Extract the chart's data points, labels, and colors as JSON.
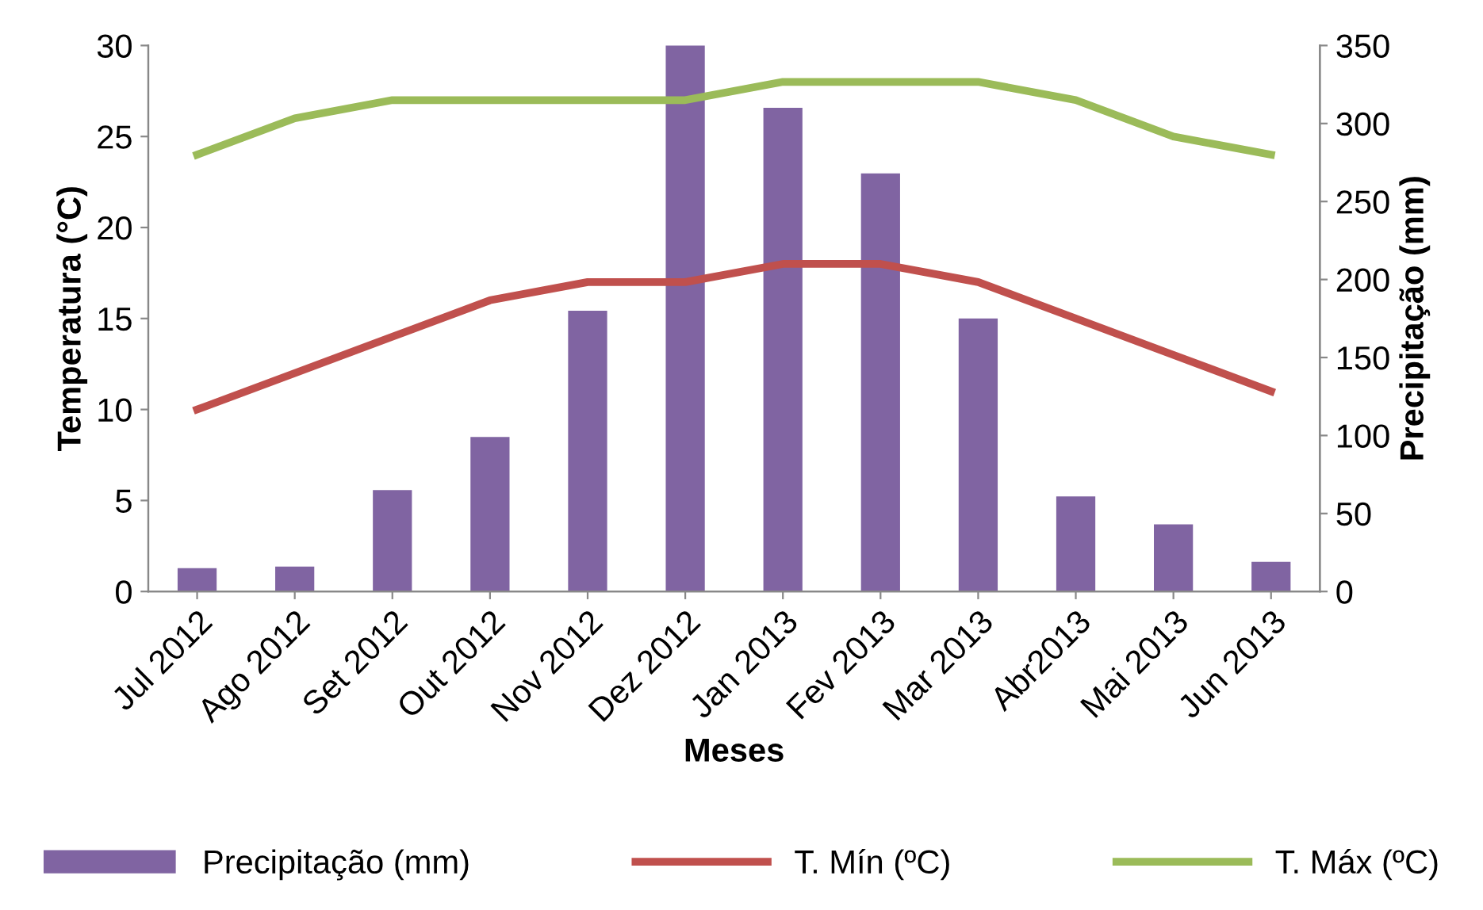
{
  "chart_data": {
    "type": "bar",
    "xlabel": "Meses",
    "ylabel": "Temperatura (°C)",
    "y2label": "Precipitação (mm)",
    "categories": [
      "Jul 2012",
      "Ago 2012",
      "Set 2012",
      "Out 2012",
      "Nov 2012",
      "Dez 2012",
      "Jan 2013",
      "Fev 2013",
      "Mar 2013",
      "Abr2013",
      "Mai 2013",
      "Jun 2013"
    ],
    "series": [
      {
        "name": "Precipitação (mm)",
        "axis": "y2",
        "color": "#8064a2",
        "values": [
          15,
          16,
          65,
          99,
          180,
          350,
          310,
          268,
          175,
          61,
          43,
          19
        ]
      },
      {
        "name": "T. Mín (ºC)",
        "type": "line",
        "color": "#c0504d",
        "values": [
          10,
          12,
          14,
          16,
          17,
          17,
          18,
          18,
          17,
          15,
          13,
          11
        ]
      },
      {
        "name": "T. Máx (ºC)",
        "type": "line",
        "color": "#9bbb59",
        "values": [
          24,
          26,
          27,
          27,
          27,
          27,
          28,
          28,
          28,
          27,
          25,
          24
        ]
      }
    ],
    "ylim": [
      0,
      30
    ],
    "yticks": [
      0,
      5,
      10,
      15,
      20,
      25,
      30
    ],
    "y2lim": [
      0,
      350
    ],
    "y2ticks": [
      0,
      50,
      100,
      150,
      200,
      250,
      300,
      350
    ],
    "grid": false,
    "legend": "bottom",
    "marker": "none",
    "line_style": "solid"
  }
}
